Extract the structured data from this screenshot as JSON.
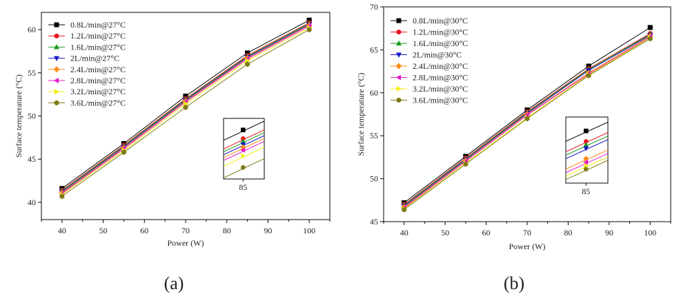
{
  "chart_data": [
    {
      "type": "line",
      "caption": "(a)",
      "xlabel": "Power (W)",
      "ylabel": "Surface temperature (°C)",
      "xlim": [
        35,
        105
      ],
      "ylim": [
        38,
        62
      ],
      "xticks": [
        40,
        50,
        60,
        70,
        80,
        90,
        100
      ],
      "yticks": [
        40,
        45,
        50,
        55,
        60
      ],
      "legend_position": "top-left",
      "grid": false,
      "x": [
        40,
        55,
        70,
        85,
        100
      ],
      "series": [
        {
          "name": "0.8L/min@27°C",
          "color": "#000000",
          "marker": "square",
          "values": [
            41.6,
            46.8,
            52.3,
            57.3,
            61.1
          ]
        },
        {
          "name": "1.2L/min@27°C",
          "color": "#e8141b",
          "marker": "circle",
          "values": [
            41.4,
            46.6,
            52.0,
            57.0,
            60.8
          ]
        },
        {
          "name": "1.6L/min@27°C",
          "color": "#1a9b1a",
          "marker": "triangle-up",
          "values": [
            41.3,
            46.5,
            51.9,
            56.9,
            60.7
          ]
        },
        {
          "name": "2L/min@27°C",
          "color": "#1414c8",
          "marker": "triangle-down",
          "values": [
            41.2,
            46.4,
            51.8,
            56.8,
            60.6
          ]
        },
        {
          "name": "2.4L/min@27°C",
          "color": "#ff8c1a",
          "marker": "diamond",
          "values": [
            41.1,
            46.3,
            51.7,
            56.7,
            60.5
          ]
        },
        {
          "name": "2.8L/min@27°C",
          "color": "#e619c8",
          "marker": "triangle-left",
          "values": [
            41.0,
            46.2,
            51.6,
            56.6,
            60.4
          ]
        },
        {
          "name": "3.2L/min@27°C",
          "color": "#f5ef14",
          "marker": "triangle-right",
          "values": [
            40.9,
            46.0,
            51.4,
            56.4,
            60.2
          ]
        },
        {
          "name": "3.6L/min@27°C",
          "color": "#7f7a14",
          "marker": "hexagon",
          "values": [
            40.7,
            45.8,
            51.0,
            56.0,
            60.0
          ]
        }
      ],
      "inset": {
        "xlabel_tick": "85",
        "values": [
          57.3,
          57.0,
          56.9,
          56.8,
          56.7,
          56.6,
          56.4,
          56.0
        ]
      }
    },
    {
      "type": "line",
      "caption": "(b)",
      "xlabel": "Power (W)",
      "ylabel": "Surface temperature (°C)",
      "xlim": [
        35,
        105
      ],
      "ylim": [
        45,
        70
      ],
      "xticks": [
        40,
        50,
        60,
        70,
        80,
        90,
        100
      ],
      "yticks": [
        45,
        50,
        55,
        60,
        65,
        70
      ],
      "legend_position": "top-left",
      "grid": false,
      "x": [
        40,
        55,
        70,
        85,
        100
      ],
      "series": [
        {
          "name": "0.8L/min@30°C",
          "color": "#000000",
          "marker": "square",
          "values": [
            47.2,
            52.6,
            58.0,
            63.1,
            67.6
          ]
        },
        {
          "name": "1.2L/min@30°C",
          "color": "#e8141b",
          "marker": "circle",
          "values": [
            47.0,
            52.4,
            57.8,
            62.8,
            66.9
          ]
        },
        {
          "name": "1.6L/min@30°C",
          "color": "#1a9b1a",
          "marker": "triangle-up",
          "values": [
            46.9,
            52.3,
            57.7,
            62.7,
            66.8
          ]
        },
        {
          "name": "2L/min@30°C",
          "color": "#1414c8",
          "marker": "triangle-down",
          "values": [
            46.8,
            52.2,
            57.6,
            62.6,
            66.7
          ]
        },
        {
          "name": "2.4L/min@30°C",
          "color": "#ff8c1a",
          "marker": "diamond",
          "values": [
            46.7,
            52.1,
            57.5,
            62.3,
            66.6
          ]
        },
        {
          "name": "2.8L/min@30°C",
          "color": "#e619c8",
          "marker": "triangle-left",
          "values": [
            46.6,
            52.0,
            57.4,
            62.2,
            66.5
          ]
        },
        {
          "name": "3.2L/min@30°C",
          "color": "#f5ef14",
          "marker": "triangle-right",
          "values": [
            46.5,
            51.8,
            57.1,
            62.1,
            66.4
          ]
        },
        {
          "name": "3.6L/min@30°C",
          "color": "#7f7a14",
          "marker": "hexagon",
          "values": [
            46.4,
            51.7,
            57.0,
            62.0,
            66.3
          ]
        }
      ],
      "inset": {
        "xlabel_tick": "85",
        "values": [
          63.1,
          62.8,
          62.7,
          62.6,
          62.3,
          62.2,
          62.1,
          62.0
        ]
      }
    }
  ]
}
